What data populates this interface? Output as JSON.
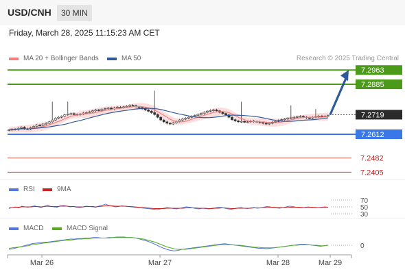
{
  "header": {
    "symbol": "USD/CNH",
    "timeframe": "30 MIN"
  },
  "timestamp": "Friday, March 28, 2025 11:15:23 AM CET",
  "legend": {
    "ma20_label": "MA 20 + Bollinger Bands",
    "ma50_label": "MA 50",
    "credit": "Research © 2025 Trading Central",
    "rsi_label": "RSI",
    "rsi_ma_label": "9MA",
    "macd_label": "MACD",
    "macd_signal_label": "MACD Signal"
  },
  "colors": {
    "ma20": "#f08080",
    "ma50": "#2f5a99",
    "band": "#fbd3d3",
    "resistance": "#4c9a1a",
    "support": "#3b78e7",
    "pivot": "#2b2b2b",
    "minor": "#cc2222",
    "arrow": "#2f5a99",
    "rsi": "#5577dd",
    "rsi_ma": "#cc2222",
    "macd": "#5577dd",
    "macd_signal": "#55aa22"
  },
  "chart_data": [
    {
      "type": "candlestick",
      "x_ticks": [
        "Mar 26",
        "Mar 27",
        "Mar 28",
        "Mar 29"
      ],
      "levels": [
        {
          "value": 7.2963,
          "label": "7.2963",
          "style": "resistance-box"
        },
        {
          "value": 7.2885,
          "label": "7.2885",
          "style": "resistance-box"
        },
        {
          "value": 7.2719,
          "label": "7.2719",
          "style": "pivot-box"
        },
        {
          "value": 7.2612,
          "label": "7.2612",
          "style": "support-box"
        },
        {
          "value": 7.2482,
          "label": "7.2482",
          "style": "minor-text"
        },
        {
          "value": 7.2405,
          "label": "7.2405",
          "style": "minor-text"
        }
      ],
      "close_series": [
        7.2635,
        7.264,
        7.2638,
        7.2645,
        7.265,
        7.2642,
        7.264,
        7.2648,
        7.2655,
        7.2662,
        7.266,
        7.2668,
        7.2672,
        7.268,
        7.269,
        7.27,
        7.2705,
        7.271,
        7.2718,
        7.2722,
        7.2725,
        7.272,
        7.2718,
        7.2722,
        7.2728,
        7.273,
        7.2735,
        7.274,
        7.2745,
        7.2742,
        7.2748,
        7.2752,
        7.2755,
        7.275,
        7.2756,
        7.276,
        7.2758,
        7.2762,
        7.2765,
        7.277,
        7.2768,
        7.2763,
        7.2758,
        7.2752,
        7.2745,
        7.2738,
        7.273,
        7.272,
        7.2705,
        7.269,
        7.268,
        7.2672,
        7.2668,
        7.2675,
        7.2682,
        7.269,
        7.2695,
        7.27,
        7.2705,
        7.271,
        7.2715,
        7.272,
        7.2725,
        7.2732,
        7.2738,
        7.2742,
        7.2745,
        7.274,
        7.2732,
        7.2725,
        7.2718,
        7.2705,
        7.2692,
        7.2685,
        7.268,
        7.2682,
        7.2678,
        7.268,
        7.2684,
        7.2682,
        7.268,
        7.2676,
        7.2672,
        7.2668,
        7.2672,
        7.2678,
        7.2682,
        7.2688,
        7.2692,
        7.2695,
        7.27,
        7.2702,
        7.2705,
        7.2708,
        7.271,
        7.2706,
        7.2702,
        7.27,
        7.2705,
        7.2708,
        7.2712,
        7.271,
        7.2712,
        7.2715
      ],
      "high_spikes": [
        {
          "index": 14,
          "high": 7.279
        },
        {
          "index": 19,
          "high": 7.279
        },
        {
          "index": 47,
          "high": 7.285
        },
        {
          "index": 75,
          "high": 7.279
        },
        {
          "index": 91,
          "high": 7.277
        },
        {
          "index": 99,
          "high": 7.275
        }
      ],
      "projection": {
        "from": 7.2719,
        "to": 7.2963
      }
    },
    {
      "type": "line",
      "name": "RSI",
      "y_ticks": [
        70,
        50,
        30
      ],
      "series": [
        {
          "name": "RSI",
          "values": [
            45,
            48,
            50,
            47,
            52,
            50,
            49,
            51,
            53,
            50,
            48,
            52,
            55,
            51,
            50,
            49,
            53,
            54,
            52,
            50,
            51,
            49,
            48,
            50,
            52,
            51,
            50,
            49,
            53,
            55,
            58,
            54,
            52,
            50,
            51,
            53,
            52,
            51,
            50,
            49,
            48,
            47,
            46,
            45,
            44,
            43,
            42,
            44,
            46,
            48,
            47,
            45,
            44,
            46,
            48,
            50,
            49,
            47,
            45,
            44,
            46,
            45,
            44,
            46,
            47,
            49,
            48,
            46,
            44,
            43,
            45,
            47,
            48,
            46,
            45,
            47,
            48,
            46,
            47,
            49,
            51,
            50,
            48,
            47,
            46,
            48,
            50,
            52,
            51,
            49,
            48,
            47,
            49,
            50,
            48,
            47,
            48,
            49,
            50,
            49
          ]
        },
        {
          "name": "9MA",
          "values": [
            47,
            48,
            49,
            49,
            50,
            50,
            50,
            50,
            51,
            51,
            50,
            51,
            52,
            51,
            51,
            51,
            52,
            52,
            52,
            51,
            51,
            50,
            50,
            50,
            51,
            51,
            51,
            50,
            51,
            52,
            53,
            53,
            53,
            52,
            52,
            52,
            52,
            51,
            51,
            50,
            49,
            48,
            48,
            47,
            46,
            45,
            45,
            45,
            45,
            46,
            46,
            46,
            46,
            46,
            46,
            47,
            47,
            47,
            47,
            46,
            46,
            46,
            45,
            45,
            46,
            46,
            47,
            47,
            46,
            45,
            45,
            46,
            46,
            46,
            46,
            46,
            47,
            47,
            47,
            48,
            48,
            49,
            49,
            48,
            48,
            48,
            48,
            49,
            49,
            49,
            49,
            48,
            48,
            49,
            49,
            48,
            48,
            48,
            49,
            49
          ]
        }
      ]
    },
    {
      "type": "line",
      "name": "MACD",
      "y_ticks": [
        0
      ],
      "series": [
        {
          "name": "MACD",
          "values": [
            -0.0008,
            -0.0007,
            -0.0005,
            -0.0003,
            -0.0001,
            0.0001,
            0.0003,
            0.0004,
            0.0005,
            0.0006,
            0.0006,
            0.0007,
            0.0008,
            0.0009,
            0.001,
            0.0011,
            0.0012,
            0.0012,
            0.0013,
            0.0013,
            0.0014,
            0.0014,
            0.0015,
            0.0015,
            0.0014,
            0.0014,
            0.0015,
            0.0015,
            0.0016,
            0.0016,
            0.0016,
            0.0015,
            0.0015,
            0.0014,
            0.0012,
            0.001,
            0.0008,
            0.0005,
            0.0002,
            -0.0002,
            -0.0005,
            -0.0008,
            -0.001,
            -0.0011,
            -0.001,
            -0.0008,
            -0.0007,
            -0.0006,
            -0.0005,
            -0.0004,
            -0.0003,
            -0.0002,
            -0.0001,
            0.0,
            0.0001,
            0.0002,
            0.0003,
            0.0002,
            0.0001,
            0.0,
            -0.0001,
            -0.0002,
            -0.0003,
            -0.0004,
            -0.0005,
            -0.0006,
            -0.0006,
            -0.0007,
            -0.0006,
            -0.0005,
            -0.0004,
            -0.0003,
            -0.0002,
            -0.0001,
            0.0,
            0.0001,
            0.0002,
            0.0002,
            0.0001,
            0.0,
            -0.0001,
            -0.0002,
            -0.0001,
            0.0
          ]
        },
        {
          "name": "MACD Signal",
          "values": [
            -0.0006,
            -0.0005,
            -0.0004,
            -0.0003,
            -0.0002,
            -0.0001,
            0.0001,
            0.0002,
            0.0003,
            0.0004,
            0.0005,
            0.0006,
            0.0007,
            0.0008,
            0.0009,
            0.001,
            0.001,
            0.0011,
            0.0012,
            0.0012,
            0.0013,
            0.0013,
            0.0014,
            0.0014,
            0.0014,
            0.0014,
            0.0014,
            0.0015,
            0.0015,
            0.0015,
            0.0015,
            0.0015,
            0.0015,
            0.0014,
            0.0013,
            0.0012,
            0.001,
            0.0008,
            0.0006,
            0.0003,
            0.0,
            -0.0003,
            -0.0005,
            -0.0007,
            -0.0008,
            -0.0008,
            -0.0008,
            -0.0007,
            -0.0006,
            -0.0005,
            -0.0004,
            -0.0003,
            -0.0002,
            -0.0001,
            0.0,
            0.0001,
            0.0001,
            0.0001,
            0.0001,
            0.0,
            0.0,
            -0.0001,
            -0.0002,
            -0.0003,
            -0.0004,
            -0.0004,
            -0.0005,
            -0.0005,
            -0.0005,
            -0.0005,
            -0.0004,
            -0.0003,
            -0.0002,
            -0.0001,
            0.0,
            0.0,
            0.0001,
            0.0001,
            0.0001,
            0.0,
            0.0,
            -0.0001,
            -0.0001,
            0.0
          ]
        }
      ]
    }
  ]
}
